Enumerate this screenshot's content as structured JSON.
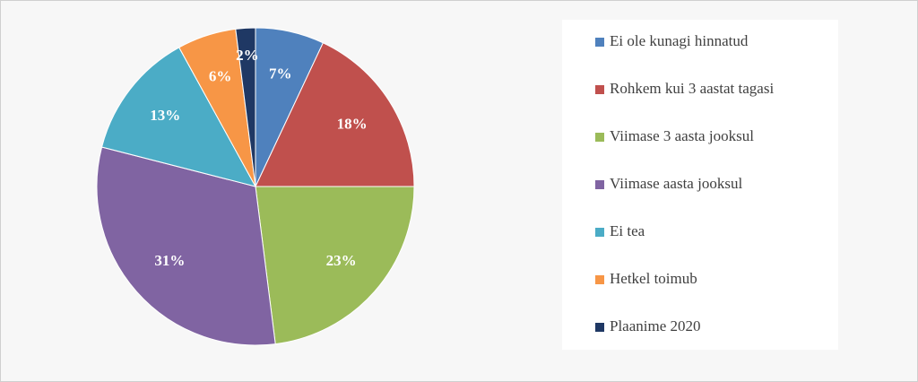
{
  "chart_data": {
    "type": "pie",
    "categories": [
      "Ei ole kunagi hinnatud",
      "Rohkem kui 3 aastat tagasi",
      "Viimase 3 aasta jooksul",
      "Viimase aasta jooksul",
      "Ei tea",
      "Hetkel toimub",
      "Plaanime 2020"
    ],
    "values": [
      7,
      18,
      23,
      31,
      13,
      6,
      2
    ],
    "value_labels": [
      "7%",
      "18%",
      "23%",
      "31%",
      "13%",
      "6%",
      "2%"
    ],
    "colors": [
      "#4f81bd",
      "#c0504d",
      "#9bbb59",
      "#8064a2",
      "#4bacc6",
      "#f79646",
      "#1f3864"
    ],
    "legend": "right"
  }
}
